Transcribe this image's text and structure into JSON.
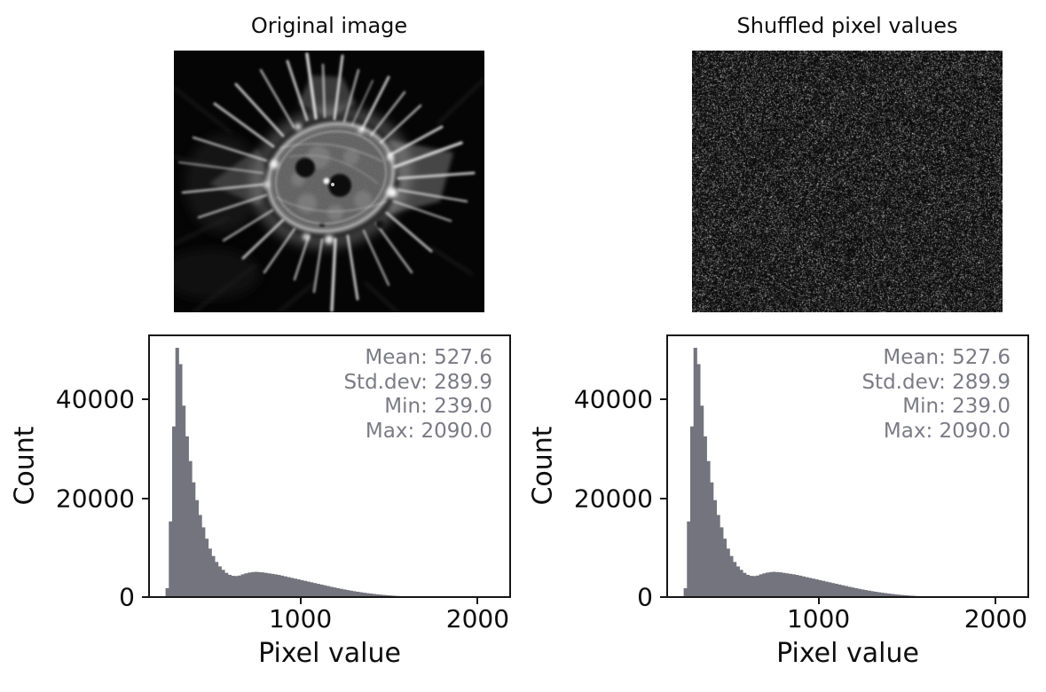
{
  "figure": {
    "titles": {
      "left": "Original image",
      "right": "Shuffled pixel values"
    }
  },
  "colors": {
    "hist_fill": "#74747e",
    "stats_text": "#7b7b85",
    "axis": "#161616",
    "background": "#ffffff",
    "image_background": "#000000"
  },
  "chart_data": [
    {
      "type": "bar",
      "role": "histogram-of-original-image",
      "xlabel": "Pixel value",
      "ylabel": "Count",
      "xlim": [
        146,
        2183
      ],
      "ylim": [
        0,
        52920
      ],
      "x_ticks": [
        {
          "v": 1000,
          "label": "1000"
        },
        {
          "v": 2000,
          "label": "2000"
        }
      ],
      "y_ticks": [
        {
          "v": 0,
          "label": "0"
        },
        {
          "v": 20000,
          "label": "20000"
        },
        {
          "v": 40000,
          "label": "40000"
        }
      ],
      "bin_start": 239,
      "bin_width": 18.51,
      "values": [
        1800,
        15300,
        34500,
        50400,
        47100,
        38700,
        32500,
        27500,
        23200,
        19600,
        16600,
        14100,
        11800,
        9800,
        8300,
        7100,
        6200,
        5500,
        4900,
        4500,
        4300,
        4250,
        4350,
        4600,
        4800,
        4950,
        5050,
        5100,
        5050,
        5000,
        4900,
        4800,
        4700,
        4600,
        4480,
        4330,
        4180,
        4030,
        3880,
        3730,
        3580,
        3430,
        3280,
        3130,
        2980,
        2830,
        2680,
        2530,
        2380,
        2230,
        2080,
        1940,
        1800,
        1670,
        1540,
        1420,
        1300,
        1190,
        1080,
        980,
        880,
        790,
        710,
        630,
        560,
        490,
        430,
        370,
        320,
        270,
        230,
        195,
        165,
        140,
        115,
        95,
        78,
        63,
        51,
        41,
        33,
        26,
        21,
        17,
        13,
        10,
        8,
        6,
        5,
        4,
        3,
        3,
        2,
        2,
        1,
        1,
        1,
        1,
        1,
        1
      ],
      "stats": [
        "Mean: 527.6",
        "Std.dev: 289.9",
        "Min: 239.0",
        "Max: 2090.0"
      ]
    },
    {
      "type": "bar",
      "role": "histogram-of-shuffled-image",
      "xlabel": "Pixel value",
      "ylabel": "Count",
      "xlim": [
        146,
        2183
      ],
      "ylim": [
        0,
        52920
      ],
      "x_ticks": [
        {
          "v": 1000,
          "label": "1000"
        },
        {
          "v": 2000,
          "label": "2000"
        }
      ],
      "y_ticks": [
        {
          "v": 0,
          "label": "0"
        },
        {
          "v": 20000,
          "label": "20000"
        },
        {
          "v": 40000,
          "label": "40000"
        }
      ],
      "bin_start": 239,
      "bin_width": 18.51,
      "values": [
        1800,
        15300,
        34500,
        50400,
        47100,
        38700,
        32500,
        27500,
        23200,
        19600,
        16600,
        14100,
        11800,
        9800,
        8300,
        7100,
        6200,
        5500,
        4900,
        4500,
        4300,
        4250,
        4350,
        4600,
        4800,
        4950,
        5050,
        5100,
        5050,
        5000,
        4900,
        4800,
        4700,
        4600,
        4480,
        4330,
        4180,
        4030,
        3880,
        3730,
        3580,
        3430,
        3280,
        3130,
        2980,
        2830,
        2680,
        2530,
        2380,
        2230,
        2080,
        1940,
        1800,
        1670,
        1540,
        1420,
        1300,
        1190,
        1080,
        980,
        880,
        790,
        710,
        630,
        560,
        490,
        430,
        370,
        320,
        270,
        230,
        195,
        165,
        140,
        115,
        95,
        78,
        63,
        51,
        41,
        33,
        26,
        21,
        17,
        13,
        10,
        8,
        6,
        5,
        4,
        3,
        3,
        2,
        2,
        1,
        1,
        1,
        1,
        1,
        1
      ],
      "stats": [
        "Mean: 527.6",
        "Std.dev: 289.9",
        "Min: 239.0",
        "Max: 2090.0"
      ]
    }
  ]
}
